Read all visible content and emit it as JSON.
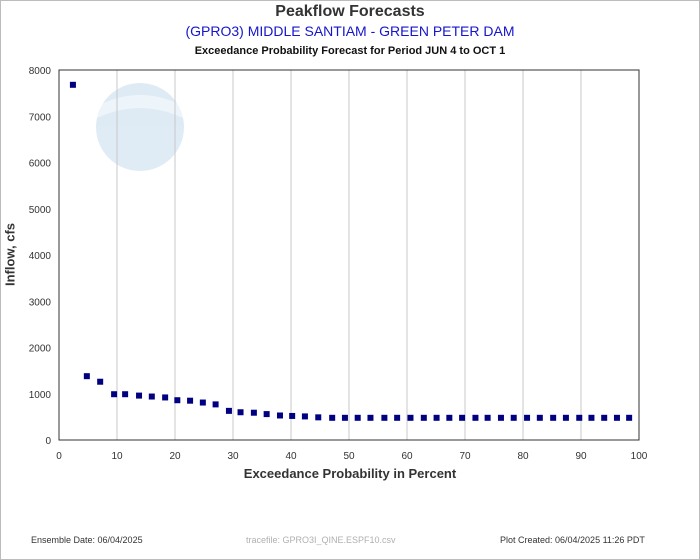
{
  "chart_data": {
    "type": "scatter",
    "title": "Peakflow Forecasts",
    "subtitle": "(GPRO3) MIDDLE SANTIAM - GREEN PETER DAM",
    "subtitle2": "Exceedance Probability Forecast for Period JUN 4 to OCT 1",
    "xlabel": "Exceedance Probability in Percent",
    "ylabel": "Inflow, cfs",
    "xlim": [
      0,
      100
    ],
    "ylim": [
      0,
      8000
    ],
    "xticks": [
      0,
      10,
      20,
      30,
      40,
      50,
      60,
      70,
      80,
      90,
      100
    ],
    "yticks": [
      0,
      1000,
      2000,
      3000,
      4000,
      5000,
      6000,
      7000,
      8000
    ],
    "grid": "vertical",
    "point_color": "#000080",
    "x": [
      2.4,
      4.8,
      7.1,
      9.5,
      11.4,
      13.8,
      16.0,
      18.3,
      20.4,
      22.6,
      24.8,
      27.0,
      29.3,
      31.3,
      33.6,
      35.8,
      38.1,
      40.2,
      42.4,
      44.7,
      47.1,
      49.3,
      51.5,
      53.7,
      56.1,
      58.3,
      60.6,
      62.9,
      65.1,
      67.3,
      69.5,
      71.8,
      73.9,
      76.2,
      78.4,
      80.7,
      82.9,
      85.2,
      87.4,
      89.7,
      91.8,
      94.0,
      96.2,
      98.3
    ],
    "y": [
      7680,
      1380,
      1260,
      990,
      990,
      960,
      940,
      920,
      860,
      850,
      810,
      770,
      630,
      600,
      590,
      560,
      530,
      520,
      510,
      490,
      480,
      480,
      480,
      480,
      480,
      480,
      480,
      480,
      480,
      480,
      480,
      480,
      480,
      480,
      480,
      480,
      480,
      480,
      480,
      480,
      480,
      480,
      480,
      480
    ]
  },
  "footer": {
    "ensemble_date": "Ensemble Date: 06/04/2025",
    "tracefile": "tracefile: GPRO3I_QINE.ESPF10.csv",
    "plot_created": "Plot Created: 06/04/2025 11:26 PDT"
  },
  "logo": {
    "text": "NOAA"
  }
}
